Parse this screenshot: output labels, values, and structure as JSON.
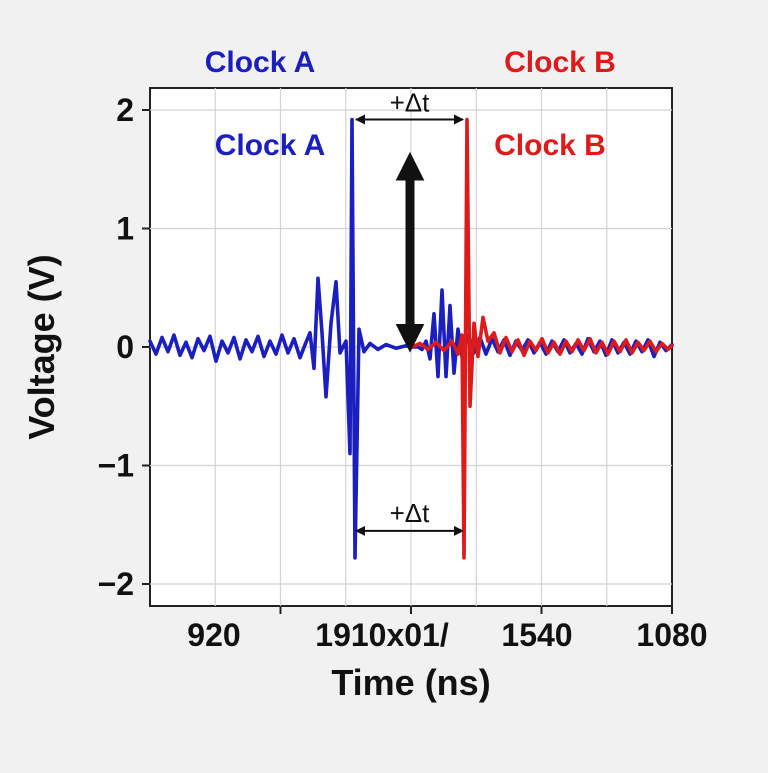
{
  "chart_data": {
    "type": "line",
    "xlabel": "Time (ns)",
    "ylabel": "Voltage (V)",
    "ylim": [
      -2,
      2
    ],
    "yticks": [
      {
        "value": 2,
        "label": "2"
      },
      {
        "value": 1,
        "label": "1"
      },
      {
        "value": 0,
        "label": "0"
      },
      {
        "value": -1,
        "label": "−1"
      },
      {
        "value": -2,
        "label": "−2"
      }
    ],
    "xtick_labels": [
      "920",
      "1910x01/",
      "1540",
      "1080"
    ],
    "grid": true,
    "legend": [
      {
        "name": "Clock A",
        "color": "#1b1fbf"
      },
      {
        "name": "Clock B",
        "color": "#dd1b1b"
      }
    ],
    "series": [
      {
        "name": "Clock A",
        "color": "#1b1fbf",
        "points": [
          [
            0,
            0.05
          ],
          [
            6,
            -0.06
          ],
          [
            12,
            0.08
          ],
          [
            18,
            -0.04
          ],
          [
            24,
            0.1
          ],
          [
            30,
            -0.07
          ],
          [
            36,
            0.04
          ],
          [
            42,
            -0.09
          ],
          [
            48,
            0.07
          ],
          [
            54,
            -0.03
          ],
          [
            60,
            0.09
          ],
          [
            66,
            -0.12
          ],
          [
            72,
            0.05
          ],
          [
            78,
            -0.05
          ],
          [
            84,
            0.08
          ],
          [
            90,
            -0.1
          ],
          [
            96,
            0.06
          ],
          [
            102,
            -0.04
          ],
          [
            108,
            0.09
          ],
          [
            114,
            -0.08
          ],
          [
            120,
            0.05
          ],
          [
            126,
            -0.06
          ],
          [
            132,
            0.1
          ],
          [
            138,
            -0.05
          ],
          [
            144,
            0.07
          ],
          [
            150,
            -0.09
          ],
          [
            156,
            0.04
          ],
          [
            160,
            0.12
          ],
          [
            164,
            -0.18
          ],
          [
            168,
            0.58
          ],
          [
            172,
            0.12
          ],
          [
            176,
            -0.42
          ],
          [
            181,
            0.2
          ],
          [
            186,
            0.55
          ],
          [
            190,
            -0.05
          ],
          [
            196,
            0.05
          ],
          [
            200,
            -0.9
          ],
          [
            202,
            1.92
          ],
          [
            205,
            -1.78
          ],
          [
            209,
            0.15
          ],
          [
            214,
            -0.04
          ],
          [
            220,
            0.03
          ],
          [
            228,
            -0.02
          ],
          [
            236,
            0.02
          ],
          [
            246,
            -0.01
          ],
          [
            256,
            0.01
          ],
          [
            262,
            0.0
          ],
          [
            268,
            0.0
          ],
          [
            272,
            -0.02
          ],
          [
            276,
            0.05
          ],
          [
            280,
            -0.1
          ],
          [
            284,
            0.28
          ],
          [
            288,
            -0.25
          ],
          [
            292,
            0.48
          ],
          [
            296,
            -0.25
          ],
          [
            300,
            0.35
          ],
          [
            304,
            -0.22
          ],
          [
            308,
            0.15
          ],
          [
            312,
            -0.08
          ],
          [
            318,
            0.1
          ],
          [
            324,
            -0.05
          ],
          [
            330,
            0.08
          ],
          [
            336,
            -0.06
          ],
          [
            342,
            0.07
          ],
          [
            348,
            -0.04
          ],
          [
            354,
            0.06
          ],
          [
            360,
            -0.07
          ],
          [
            366,
            0.05
          ],
          [
            372,
            -0.03
          ],
          [
            378,
            0.06
          ],
          [
            384,
            -0.05
          ],
          [
            390,
            0.04
          ],
          [
            396,
            -0.06
          ],
          [
            402,
            0.05
          ],
          [
            408,
            -0.04
          ],
          [
            414,
            0.06
          ],
          [
            420,
            -0.05
          ],
          [
            426,
            0.03
          ],
          [
            432,
            -0.06
          ],
          [
            438,
            0.07
          ],
          [
            444,
            -0.04
          ],
          [
            450,
            0.05
          ],
          [
            456,
            -0.07
          ],
          [
            462,
            0.06
          ],
          [
            468,
            -0.05
          ],
          [
            474,
            0.04
          ],
          [
            480,
            -0.06
          ],
          [
            486,
            0.05
          ],
          [
            492,
            -0.04
          ],
          [
            498,
            0.06
          ],
          [
            504,
            -0.08
          ],
          [
            510,
            0.04
          ],
          [
            516,
            -0.03
          ],
          [
            522,
            0.02
          ]
        ]
      },
      {
        "name": "Clock B",
        "color": "#dd1b1b",
        "points": [
          [
            262,
            0.0
          ],
          [
            270,
            0.03
          ],
          [
            278,
            -0.02
          ],
          [
            286,
            0.04
          ],
          [
            294,
            -0.03
          ],
          [
            302,
            0.05
          ],
          [
            308,
            -0.06
          ],
          [
            312,
            0.1
          ],
          [
            314,
            -1.78
          ],
          [
            317,
            1.92
          ],
          [
            320,
            -0.5
          ],
          [
            324,
            0.2
          ],
          [
            328,
            -0.08
          ],
          [
            333,
            0.25
          ],
          [
            338,
            0.05
          ],
          [
            344,
            0.12
          ],
          [
            350,
            -0.05
          ],
          [
            356,
            0.08
          ],
          [
            362,
            -0.04
          ],
          [
            368,
            0.06
          ],
          [
            374,
            -0.07
          ],
          [
            380,
            0.05
          ],
          [
            386,
            -0.03
          ],
          [
            392,
            0.07
          ],
          [
            398,
            -0.05
          ],
          [
            404,
            0.04
          ],
          [
            410,
            -0.06
          ],
          [
            416,
            0.05
          ],
          [
            422,
            -0.04
          ],
          [
            428,
            0.06
          ],
          [
            434,
            -0.03
          ],
          [
            440,
            0.07
          ],
          [
            446,
            -0.05
          ],
          [
            452,
            0.04
          ],
          [
            458,
            -0.06
          ],
          [
            464,
            0.05
          ],
          [
            470,
            -0.04
          ],
          [
            476,
            0.06
          ],
          [
            482,
            -0.05
          ],
          [
            488,
            0.04
          ],
          [
            494,
            -0.03
          ],
          [
            500,
            0.05
          ],
          [
            506,
            -0.04
          ],
          [
            512,
            0.03
          ],
          [
            518,
            -0.02
          ],
          [
            522,
            0.01
          ]
        ]
      }
    ],
    "annotations": [
      {
        "text": "Clock A",
        "color": "#1b1fbf"
      },
      {
        "text": "Clock B",
        "color": "#dd1b1b"
      },
      {
        "text": "+Δt",
        "color": "#111111"
      },
      {
        "text": "+Δt",
        "color": "#111111"
      }
    ]
  }
}
